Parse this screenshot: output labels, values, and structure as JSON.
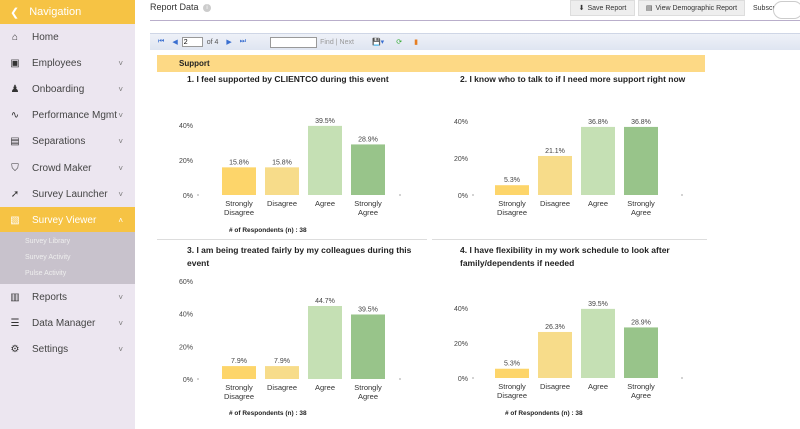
{
  "sidebar": {
    "header": "Navigation",
    "items": [
      {
        "label": "Home",
        "icon": "home-icon",
        "glyph": "⌂",
        "chevron": false
      },
      {
        "label": "Employees",
        "icon": "id-card-icon",
        "glyph": "▣",
        "chevron": true
      },
      {
        "label": "Onboarding",
        "icon": "user-plus-icon",
        "glyph": "♟",
        "chevron": true
      },
      {
        "label": "Performance Mgmt",
        "icon": "pulse-icon",
        "glyph": "∿",
        "chevron": true
      },
      {
        "label": "Separations",
        "icon": "document-icon",
        "glyph": "▤",
        "chevron": true
      },
      {
        "label": "Crowd Maker",
        "icon": "crowd-icon",
        "glyph": "⛉",
        "chevron": true
      },
      {
        "label": "Survey Launcher",
        "icon": "rocket-icon",
        "glyph": "➚",
        "chevron": true
      },
      {
        "label": "Survey Viewer",
        "icon": "survey-icon",
        "glyph": "▧",
        "chevron": true,
        "active": true
      },
      {
        "label": "Reports",
        "icon": "bar-chart-icon",
        "glyph": "▥",
        "chevron": true
      },
      {
        "label": "Data Manager",
        "icon": "database-icon",
        "glyph": "☰",
        "chevron": true
      },
      {
        "label": "Settings",
        "icon": "gear-icon",
        "glyph": "⚙",
        "chevron": true
      }
    ],
    "subitems": [
      "Survey Library",
      "Survey Activity",
      "Pulse Activity"
    ]
  },
  "header": {
    "title": "Report Data",
    "save": "Save Report",
    "demographic": "View Demographic Report",
    "subscribe": "Subscribe"
  },
  "toolbar": {
    "page": "2",
    "of": "of 4",
    "find": "Find",
    "sep": "|",
    "next": "Next"
  },
  "section": "Support",
  "colors": {
    "accent": "#f6c344",
    "bars": [
      "#fdd56a",
      "#f7dc8a",
      "#c5e0b4",
      "#98c48a"
    ]
  },
  "chart_data": [
    {
      "type": "bar",
      "title": "1. I feel supported by CLIENTCO during this event",
      "categories": [
        "Strongly Disagree",
        "Disagree",
        "Agree",
        "Strongly Agree"
      ],
      "values": [
        15.8,
        15.8,
        39.5,
        28.9
      ],
      "yticks": [
        "0%",
        "20%",
        "40%"
      ],
      "ylim": [
        0,
        40
      ],
      "footer": "# of Respondents (n) : 38"
    },
    {
      "type": "bar",
      "title": "2. I know who to talk to if I need more support right now",
      "categories": [
        "Strongly Disagree",
        "Disagree",
        "Agree",
        "Strongly Agree"
      ],
      "values": [
        5.3,
        21.1,
        36.8,
        36.8
      ],
      "yticks": [
        "0%",
        "20%",
        "40%"
      ],
      "ylim": [
        0,
        40
      ],
      "footer": ""
    },
    {
      "type": "bar",
      "title": "3. I am being treated fairly by my colleagues during this event",
      "categories": [
        "Strongly Disagree",
        "Disagree",
        "Agree",
        "Strongly Agree"
      ],
      "values": [
        7.9,
        7.9,
        44.7,
        39.5
      ],
      "yticks": [
        "0%",
        "20%",
        "40%",
        "60%"
      ],
      "ylim": [
        0,
        60
      ],
      "footer": "# of Respondents (n) : 38"
    },
    {
      "type": "bar",
      "title": "4. I have flexibility in my work schedule to look after family/dependents if needed",
      "categories": [
        "Strongly Disagree",
        "Disagree",
        "Agree",
        "Strongly Agree"
      ],
      "values": [
        5.3,
        26.3,
        39.5,
        28.9
      ],
      "yticks": [
        "0%",
        "20%",
        "40%"
      ],
      "ylim": [
        0,
        40
      ],
      "footer": "# of Respondents (n) : 38"
    }
  ]
}
